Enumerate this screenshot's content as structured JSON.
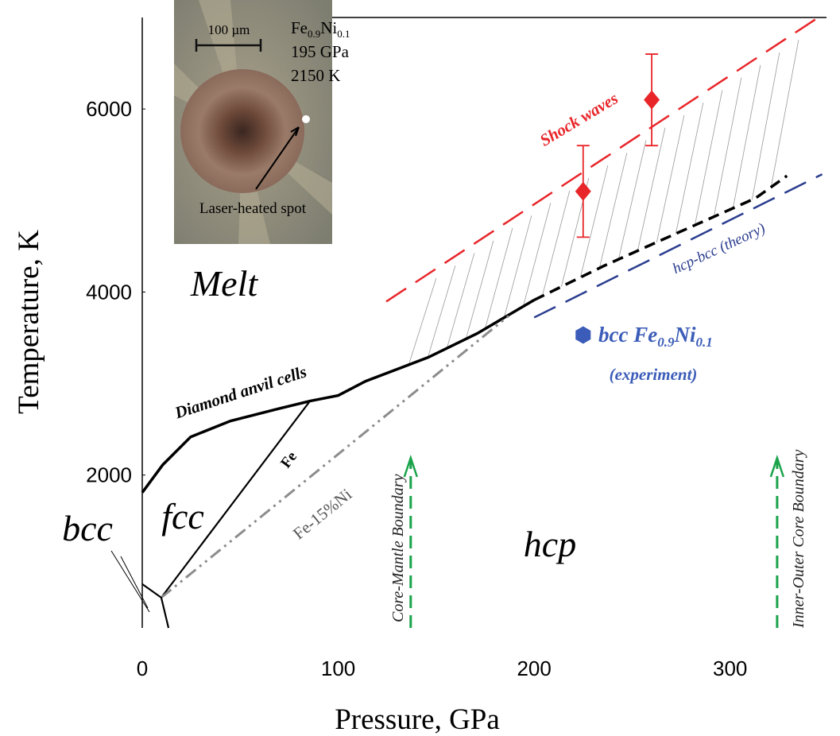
{
  "chart_data": {
    "type": "line",
    "x_label": "Pressure, GPa",
    "y_label": "Temperature, K",
    "xlim": [
      0,
      350
    ],
    "ylim": [
      330,
      7000
    ],
    "xticks": [
      0,
      100,
      200,
      300
    ],
    "yticks": [
      2000,
      4000,
      6000
    ],
    "series": [
      {
        "name": "Diamond anvil cells",
        "color": "#000000",
        "dash": "solid",
        "x": [
          0,
          10.5,
          24.7,
          45,
          69,
          85.6,
          100,
          114,
          146,
          171,
          200
        ],
        "values": [
          1809,
          2113,
          2417,
          2591,
          2722,
          2809,
          2870,
          3026,
          3287,
          3548,
          3913
        ]
      },
      {
        "color": "#000000",
        "dash": "dashed",
        "x": [
          200,
          235.7,
          272,
          313,
          329
        ],
        "values": [
          3913,
          4287,
          4635,
          5026,
          5270
        ]
      },
      {
        "name": "Fe",
        "color": "#000000",
        "dash": "solid",
        "x": [
          9.7,
          85.6
        ],
        "values": [
          661,
          2809
        ]
      },
      {
        "name": "Fe-15%Ni",
        "color": "#8c8c8c",
        "dash": "dashdot",
        "x": [
          9.7,
          187
        ],
        "values": [
          661,
          3739
        ]
      },
      {
        "color": "#000000",
        "dash": "solid",
        "x": [
          0,
          9.7,
          13.4
        ],
        "values": [
          809,
          661,
          330
        ]
      },
      {
        "name": "Shock waves",
        "color": "#e8262a",
        "dash": "longdash",
        "x": [
          124.5,
          345
        ],
        "values": [
          3896,
          7000
        ]
      },
      {
        "name": "hcp-bcc (theory)",
        "color": "#2b3d8f",
        "dash": "longdash",
        "x": [
          200,
          347
        ],
        "values": [
          3722,
          5287
        ]
      }
    ],
    "shock_points": {
      "color": "#e8262a",
      "x": [
        225,
        260
      ],
      "values": [
        5100,
        6100
      ],
      "errors": [
        500,
        500
      ]
    },
    "experiment": {
      "color": "#3b5cb8",
      "x": [
        225
      ],
      "values": [
        3530
      ],
      "label_parts": [
        "bcc Fe",
        "0.9",
        "Ni",
        "0.1"
      ],
      "note": "(experiment)"
    },
    "boundaries": [
      {
        "label": "Core-Mantle Boundary",
        "x": 137,
        "color": "#1aa34a"
      },
      {
        "label": "Inner-Outer Core Boundary",
        "x": 324,
        "color": "#1aa34a"
      }
    ],
    "phases": [
      "Melt",
      "bcc",
      "fcc",
      "hcp"
    ],
    "inset": {
      "scale": "100 µm",
      "composition": [
        "Fe",
        "0.9",
        "Ni",
        "0.1"
      ],
      "pressure": "195 GPa",
      "temperature": "2150 K",
      "label": "Laser-heated spot"
    }
  }
}
